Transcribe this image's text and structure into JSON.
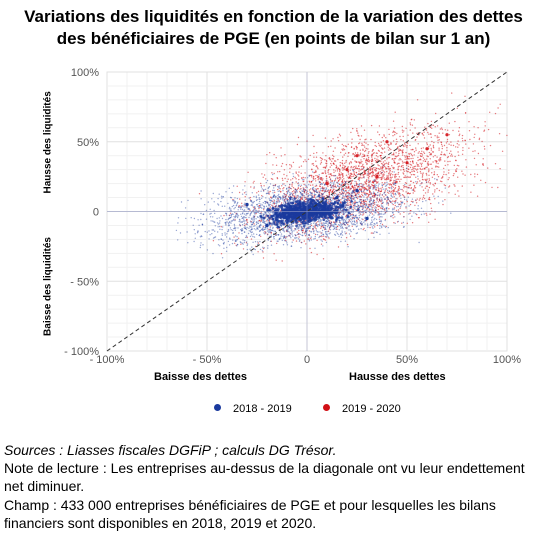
{
  "title": {
    "line1": "Variations des liquidités en fonction de la variation des dettes",
    "line2": "des bénéficiaires de PGE (en points de bilan sur 1 an)"
  },
  "axes": {
    "y_upper_label": "Hausse des liquidités",
    "y_lower_label": "Baisse des liquidités",
    "x_left_label": "Baisse des dettes",
    "x_right_label": "Hausse des dettes"
  },
  "legend": {
    "item1": "2018 - 2019",
    "item2": "2019 - 2020"
  },
  "notes": {
    "source": "Sources : Liasses fiscales DGFiP ; calculs DG Trésor.",
    "reading": "Note de lecture : Les entreprises au-dessus de la diagonale ont vu leur endettement net diminuer.",
    "scope": "Champ : 433 000 entreprises bénéficiaires de PGE et pour lesquelles les bilans financiers sont disponibles en 2018, 2019 et 2020."
  },
  "chart_data": {
    "type": "scatter",
    "title": "Variations des liquidités en fonction de la variation des dettes des bénéficiaires de PGE (en points de bilan sur 1 an)",
    "xlabel": "Baisse des dettes / Hausse des dettes",
    "ylabel": "Baisse des liquidités / Hausse des liquidités",
    "xlim": [
      -100,
      100
    ],
    "ylim": [
      -100,
      100
    ],
    "x_ticks": [
      "- 100%",
      "- 50%",
      "0",
      "50%",
      "100%"
    ],
    "y_ticks": [
      "100%",
      "50%",
      "0",
      "- 50%",
      "- 100%"
    ],
    "grid": true,
    "reference_line": "diagonal y = x (dashed)",
    "legend_position": "bottom",
    "series": [
      {
        "name": "2018 - 2019",
        "color": "#1a3a9e",
        "description_points": [
          {
            "x": 0,
            "y": 0
          },
          {
            "x": 5,
            "y": 5
          },
          {
            "x": -10,
            "y": -5
          },
          {
            "x": 15,
            "y": 10
          },
          {
            "x": -20,
            "y": -10
          },
          {
            "x": 25,
            "y": 15
          },
          {
            "x": -30,
            "y": 5
          },
          {
            "x": 30,
            "y": -5
          }
        ]
      },
      {
        "name": "2019 - 2020",
        "color": "#d10f16",
        "description_points": [
          {
            "x": 10,
            "y": 20
          },
          {
            "x": 25,
            "y": 40
          },
          {
            "x": 40,
            "y": 50
          },
          {
            "x": 50,
            "y": 35
          },
          {
            "x": 35,
            "y": 25
          },
          {
            "x": 60,
            "y": 45
          },
          {
            "x": 20,
            "y": 30
          },
          {
            "x": 70,
            "y": 55
          }
        ]
      }
    ]
  }
}
